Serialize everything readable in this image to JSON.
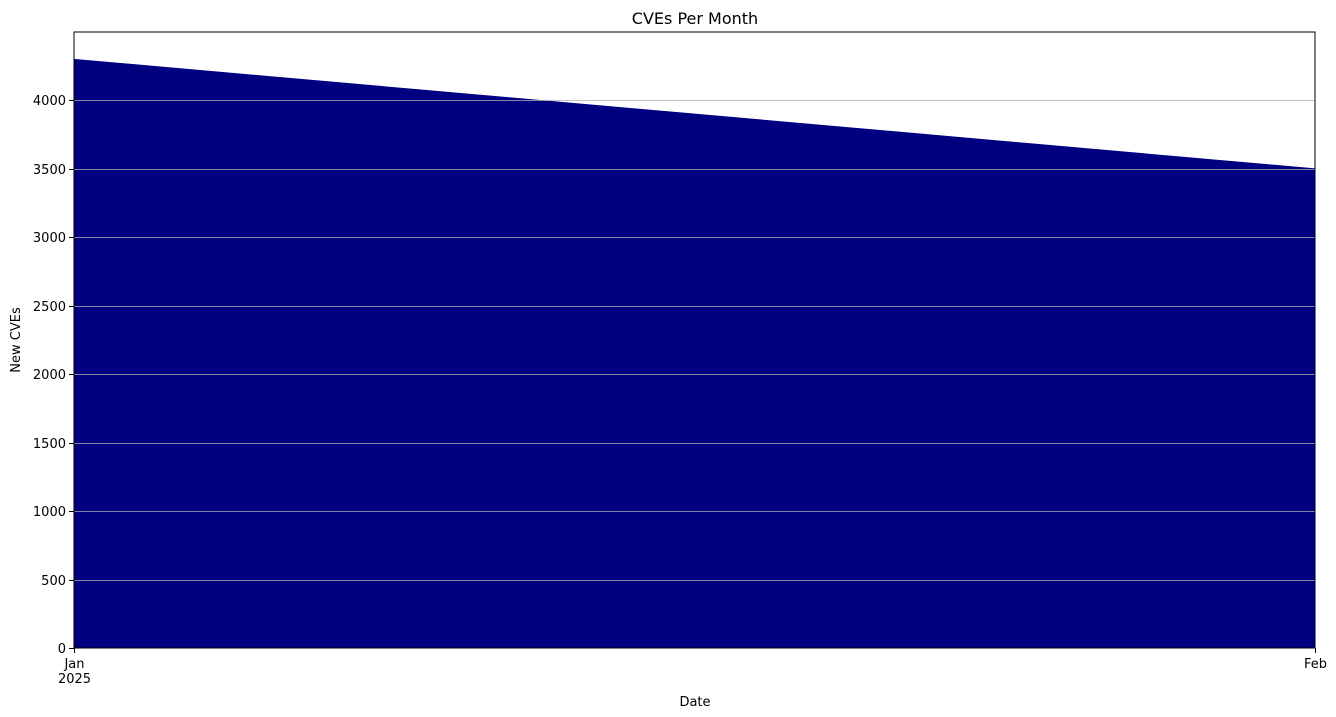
{
  "chart_data": {
    "type": "area",
    "title": "CVEs Per Month",
    "xlabel": "Date",
    "ylabel": "New CVEs",
    "x": [
      "2025-01",
      "2025-02"
    ],
    "x_tick_labels": [
      {
        "month": "Jan",
        "year": "2025"
      },
      {
        "month": "Feb",
        "year": ""
      }
    ],
    "series": [
      {
        "values": [
          4300,
          3500
        ]
      }
    ],
    "ylim": [
      0,
      4500
    ],
    "y_ticks": [
      0,
      500,
      1000,
      1500,
      2000,
      2500,
      3000,
      3500,
      4000
    ],
    "y_tick_labels": [
      "0",
      "500",
      "1000",
      "1500",
      "2000",
      "2500",
      "3000",
      "3500",
      "4000"
    ],
    "grid": "horizontal",
    "legend": "none",
    "fill_color": "#000080",
    "grid_color": "#b0b0b0"
  }
}
